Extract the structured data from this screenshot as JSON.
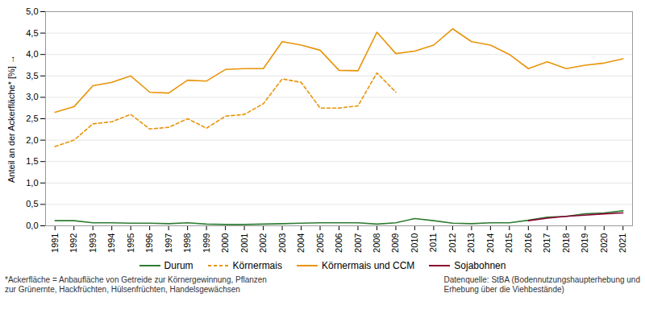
{
  "chart_data": {
    "type": "line",
    "ylabel": "Anteil an der Ackerfläche* [%]",
    "x": [
      1991,
      1992,
      1993,
      1994,
      1995,
      1996,
      1997,
      1998,
      1999,
      2000,
      2001,
      2002,
      2003,
      2004,
      2005,
      2006,
      2007,
      2008,
      2009,
      2010,
      2011,
      2012,
      2013,
      2014,
      2015,
      2016,
      2017,
      2018,
      2019,
      2020,
      2021
    ],
    "series": [
      {
        "name": "Durum",
        "color": "#2e7d32",
        "line_style": "solid",
        "values": [
          0.12,
          0.12,
          0.07,
          0.07,
          0.06,
          0.06,
          0.05,
          0.07,
          0.04,
          0.03,
          0.03,
          0.04,
          0.05,
          0.06,
          0.07,
          0.07,
          0.07,
          0.04,
          0.07,
          0.17,
          0.12,
          0.06,
          0.05,
          0.07,
          0.07,
          0.13,
          0.2,
          0.22,
          0.28,
          0.3,
          0.35
        ]
      },
      {
        "name": "Körnermais",
        "color": "#e8940a",
        "line_style": "dashed",
        "values": [
          1.85,
          2.0,
          2.38,
          2.43,
          2.6,
          2.26,
          2.3,
          2.5,
          2.28,
          2.56,
          2.6,
          2.85,
          3.43,
          3.35,
          2.75,
          2.75,
          2.8,
          3.57,
          3.12,
          null,
          null,
          null,
          null,
          null,
          null,
          null,
          null,
          null,
          null,
          null,
          null
        ]
      },
      {
        "name": "Körnermais und CCM",
        "color": "#e8940a",
        "line_style": "solid",
        "values": [
          2.65,
          2.78,
          3.27,
          3.35,
          3.5,
          3.12,
          3.1,
          3.4,
          3.38,
          3.65,
          3.67,
          3.67,
          4.3,
          4.22,
          4.1,
          3.63,
          3.62,
          4.52,
          4.02,
          4.08,
          4.22,
          4.6,
          4.3,
          4.22,
          4.0,
          3.67,
          3.83,
          3.67,
          3.75,
          3.8,
          3.9
        ]
      },
      {
        "name": "Sojabohnen",
        "color": "#8b0033",
        "line_style": "solid",
        "values": [
          null,
          null,
          null,
          null,
          null,
          null,
          null,
          null,
          null,
          null,
          null,
          null,
          null,
          null,
          null,
          null,
          null,
          null,
          null,
          null,
          null,
          null,
          null,
          null,
          null,
          0.12,
          0.18,
          0.22,
          0.25,
          0.28,
          0.3
        ]
      }
    ],
    "xlim": [
      1990.5,
      2021.5
    ],
    "xticks": [
      1991,
      1992,
      1993,
      1994,
      1995,
      1996,
      1997,
      1998,
      1999,
      2000,
      2001,
      2002,
      2003,
      2004,
      2005,
      2006,
      2007,
      2008,
      2009,
      2010,
      2011,
      2012,
      2013,
      2014,
      2015,
      2016,
      2017,
      2018,
      2019,
      2020,
      2021
    ],
    "ylim": [
      0.0,
      5.0
    ],
    "yticks": [
      {
        "value": 0.0,
        "label": "0,0"
      },
      {
        "value": 0.5,
        "label": "0,5"
      },
      {
        "value": 1.0,
        "label": "1,0"
      },
      {
        "value": 1.5,
        "label": "1,5"
      },
      {
        "value": 2.0,
        "label": "2,0"
      },
      {
        "value": 2.5,
        "label": "2,5"
      },
      {
        "value": 3.0,
        "label": "3,0"
      },
      {
        "value": 3.5,
        "label": "3,5"
      },
      {
        "value": 4.0,
        "label": "4,0"
      },
      {
        "value": 4.5,
        "label": "4,5"
      },
      {
        "value": 5.0,
        "label": "5,0"
      }
    ],
    "grid": "y",
    "legend": "bottom",
    "annotations": [
      "*Ackerfläche = Anbaufläche von Getreide zur Körnergewinnung, Pflanzen\nzur Grünernte, Hackfrüchten, Hülsenfrüchten, Handelsgewächsen",
      "Datenquelle: StBA (Bodennutzungshaupterhebung und\nErhebung über die Viehbestände)"
    ]
  }
}
